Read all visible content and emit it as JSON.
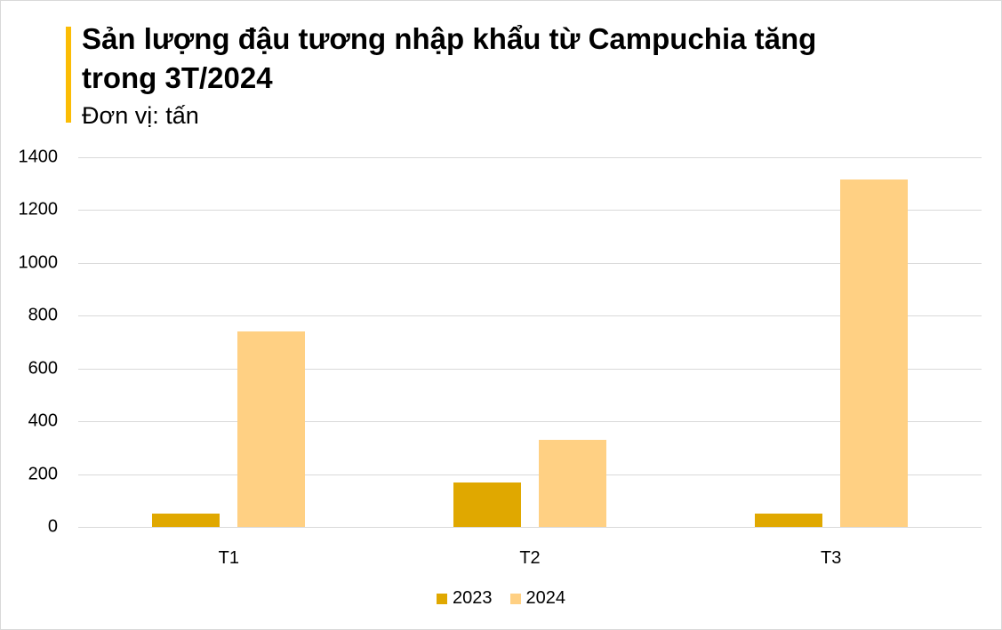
{
  "header": {
    "title": "Sản lượng đậu tương nhập khẩu từ Campuchia tăng trong 3T/2024",
    "unit": "Đơn vị: tấn"
  },
  "colors": {
    "accent": "#fbbc05",
    "s2023": "#e0a800",
    "s2024": "#ffd083"
  },
  "chart_data": {
    "type": "bar",
    "title": "Sản lượng đậu tương nhập khẩu từ Campuchia tăng trong 3T/2024",
    "subtitle": "Đơn vị: tấn",
    "xlabel": "",
    "ylabel": "",
    "categories": [
      "T1",
      "T2",
      "T3"
    ],
    "series": [
      {
        "name": "2023",
        "values": [
          50,
          168,
          50
        ]
      },
      {
        "name": "2024",
        "values": [
          740,
          330,
          1316
        ]
      }
    ],
    "ylim": [
      0,
      1400
    ],
    "yticks": [
      "0",
      "200",
      "400",
      "600",
      "800",
      "1000",
      "1200",
      "1400"
    ],
    "grid": true,
    "legend_position": "bottom"
  },
  "legend": [
    "2023",
    "2024"
  ]
}
